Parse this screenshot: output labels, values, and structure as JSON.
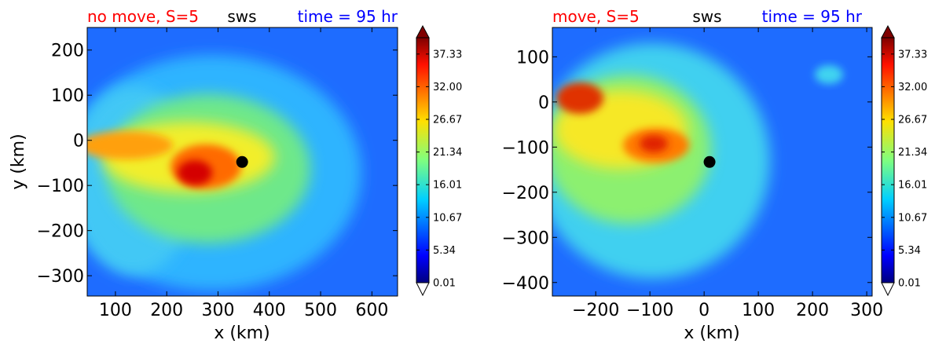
{
  "chart_data": [
    {
      "type": "contourf",
      "variable": "sws",
      "title_left": "no move, S=5",
      "title_center": "sws",
      "title_right": "time = 95 hr",
      "title_left_color": "#ff0000",
      "title_right_color": "#0000ff",
      "xlabel": "x (km)",
      "ylabel": "y (km)",
      "xlim": [
        45,
        650
      ],
      "ylim": [
        -345,
        250
      ],
      "xticks": [
        100,
        200,
        300,
        400,
        500,
        600
      ],
      "yticks": [
        200,
        100,
        0,
        -100,
        -200,
        -300
      ],
      "center_marker": {
        "x": 347,
        "y": -48
      },
      "field_features": [
        {
          "name": "background",
          "x": 500,
          "y": 150,
          "value": 6
        },
        {
          "name": "ring",
          "x": 280,
          "y": -120,
          "value": 15
        },
        {
          "name": "inner-ring",
          "x": 290,
          "y": -80,
          "value": 19
        },
        {
          "name": "rainband",
          "x": 150,
          "y": -10,
          "value": 28
        },
        {
          "name": "core",
          "x": 270,
          "y": -70,
          "value": 34
        },
        {
          "name": "max",
          "x": 240,
          "y": -90,
          "value": 38
        }
      ]
    },
    {
      "type": "contourf",
      "variable": "sws",
      "title_left": "move, S=5",
      "title_center": "sws",
      "title_right": "time = 95 hr",
      "title_left_color": "#ff0000",
      "title_right_color": "#0000ff",
      "xlabel": "x (km)",
      "ylabel": "",
      "xlim": [
        -280,
        310
      ],
      "ylim": [
        -430,
        165
      ],
      "xticks": [
        -200,
        -100,
        0,
        100,
        200,
        300
      ],
      "yticks": [
        100,
        0,
        -100,
        -200,
        -300,
        -400
      ],
      "center_marker": {
        "x": 10,
        "y": -133
      },
      "field_features": [
        {
          "name": "background",
          "x": 200,
          "y": 0,
          "value": 6
        },
        {
          "name": "broad",
          "x": -120,
          "y": -100,
          "value": 17
        },
        {
          "name": "band",
          "x": -180,
          "y": -20,
          "value": 24
        },
        {
          "name": "core",
          "x": -100,
          "y": -100,
          "value": 33
        },
        {
          "name": "max-west",
          "x": -230,
          "y": 20,
          "value": 36
        }
      ]
    }
  ],
  "colorbar": {
    "ticks": [
      "37.33",
      "32.00",
      "26.67",
      "21.34",
      "16.01",
      "10.67",
      "5.34",
      "0.01"
    ],
    "vmin": 0.01,
    "vmax": 40,
    "extend": "both",
    "colormap": "jet",
    "over_color": "#800000",
    "under_color": "#ffffff"
  }
}
